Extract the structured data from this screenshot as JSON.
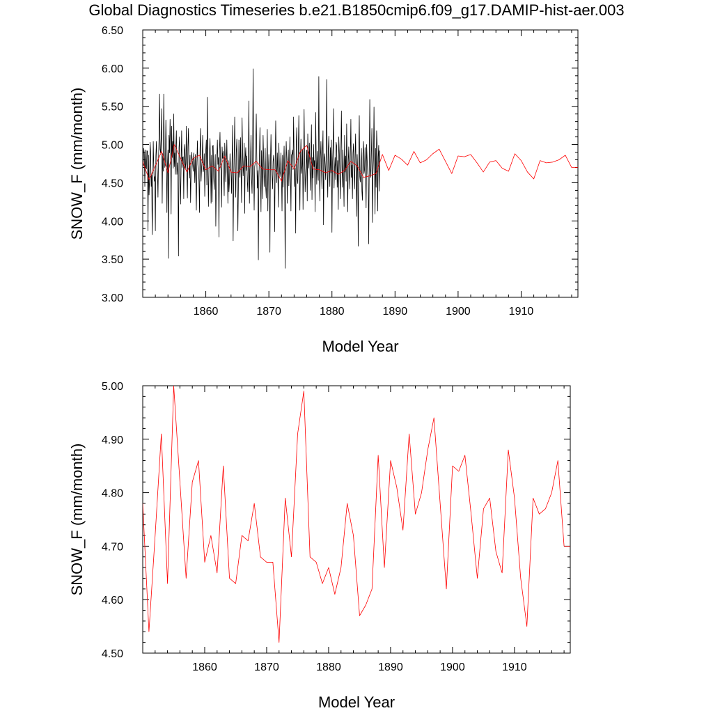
{
  "title": "Global Diagnostics Timeseries b.e21.B1850cmip6.f09_g17.DAMIP-hist-aer.003",
  "colors": {
    "monthly": "#000000",
    "annual": "#ff0000",
    "axes": "#000000",
    "background": "#ffffff"
  },
  "chart_data": [
    {
      "type": "line",
      "xlabel": "Model Year",
      "ylabel": "SNOW_F (mm/month)",
      "xlim": [
        1850,
        1919
      ],
      "ylim": [
        3.0,
        6.5
      ],
      "xticks": [
        1860,
        1870,
        1880,
        1890,
        1900,
        1910
      ],
      "xtick_labels": [
        "1860",
        "1870",
        "1880",
        "1890",
        "1900",
        "1910"
      ],
      "yticks": [
        3.0,
        3.5,
        4.0,
        4.5,
        5.0,
        5.5,
        6.0,
        6.5
      ],
      "ytick_labels": [
        "3.00",
        "3.50",
        "4.00",
        "4.50",
        "5.00",
        "5.50",
        "6.00",
        "6.50"
      ],
      "grid": false,
      "series": [
        {
          "id": "monthly",
          "color": "#000000",
          "x_start": 1850.0,
          "x_step": 0.0833333,
          "values": [
            4.79,
            4.72,
            4.95,
            4.88,
            4.45,
            4.93,
            4.7,
            4.68,
            4.92,
            4.91,
            3.87,
            4.86,
            4.34,
            4.52,
            5.03,
            4.89,
            4.45,
            4.6,
            3.82,
            4.34,
            5.04,
            4.72,
            4.52,
            4.58,
            3.87,
            4.85,
            5.04,
            4.73,
            4.63,
            4.31,
            4.79,
            5.08,
            5.66,
            4.94,
            4.89,
            5.08,
            5.47,
            4.23,
            4.88,
            4.65,
            5.66,
            4.97,
            4.7,
            4.75,
            5.32,
            4.92,
            4.11,
            4.74,
            4.93,
            3.51,
            5.12,
            4.89,
            5.33,
            4.98,
            4.09,
            5.24,
            4.83,
            5.04,
            4.69,
            5.4,
            4.71,
            4.89,
            4.61,
            4.98,
            5.18,
            4.61,
            4.76,
            4.56,
            3.54,
            4.96,
            5.1,
            4.6,
            4.22,
            4.73,
            5.18,
            4.7,
            4.83,
            4.84,
            4.29,
            4.92,
            5.0,
            4.68,
            4.75,
            5.24,
            4.62,
            4.3,
            4.97,
            5.21,
            4.73,
            4.56,
            4.86,
            4.24,
            4.6,
            4.9,
            4.81,
            4.74,
            4.65,
            4.89,
            4.79,
            4.5,
            4.87,
            4.51,
            4.14,
            4.77,
            5.05,
            4.73,
            4.69,
            4.52,
            4.11,
            4.94,
            5.21,
            4.52,
            4.7,
            4.79,
            5.12,
            4.64,
            4.68,
            4.88,
            4.32,
            4.69,
            4.93,
            5.06,
            4.47,
            5.62,
            4.71,
            4.19,
            4.66,
            4.88,
            5.08,
            4.73,
            4.23,
            4.86,
            4.25,
            4.98,
            4.99,
            4.57,
            4.41,
            4.71,
            4.87,
            3.93,
            4.48,
            4.81,
            5.06,
            4.74,
            4.83,
            3.79,
            4.92,
            5.16,
            4.74,
            4.65,
            4.18,
            4.97,
            4.82,
            4.91,
            4.63,
            4.33,
            5.02,
            4.85,
            4.51,
            4.71,
            5.06,
            4.68,
            4.23,
            4.79,
            4.38,
            4.52,
            4.88,
            4.69,
            4.63,
            4.36,
            4.81,
            5.25,
            3.74,
            4.51,
            4.87,
            5.36,
            4.67,
            4.31,
            4.9,
            5.07,
            4.53,
            3.87,
            4.44,
            5.06,
            4.64,
            4.57,
            5.09,
            4.66,
            4.24,
            5.35,
            4.91,
            4.59,
            4.71,
            5.02,
            4.1,
            4.82,
            4.96,
            4.66,
            4.85,
            4.51,
            4.38,
            4.86,
            5.57,
            4.23,
            4.67,
            4.8,
            5.12,
            4.55,
            4.36,
            4.84,
            5.99,
            4.71,
            4.14,
            4.71,
            4.76,
            4.93,
            5.4,
            4.82,
            4.43,
            4.66,
            3.49,
            4.56,
            4.84,
            5.22,
            4.59,
            4.12,
            4.92,
            4.69,
            4.29,
            5.12,
            4.83,
            4.45,
            4.63,
            4.95,
            4.44,
            4.3,
            4.77,
            5.2,
            4.13,
            4.64,
            4.87,
            4.67,
            3.59,
            4.78,
            5.13,
            4.68,
            4.59,
            4.42,
            4.78,
            4.86,
            4.65,
            3.86,
            4.74,
            5.31,
            4.78,
            4.5,
            4.89,
            4.66,
            4.18,
            5.02,
            4.71,
            4.58,
            4.65,
            4.89,
            4.59,
            4.13,
            4.86,
            4.44,
            4.72,
            4.98,
            4.55,
            3.38,
            4.73,
            5.04,
            4.79,
            4.23,
            4.77,
            4.93,
            4.46,
            4.69,
            5.1,
            4.64,
            4.13,
            4.86,
            4.88,
            4.93,
            4.67,
            5.36,
            4.82,
            4.45,
            4.69,
            3.84,
            5.0,
            5.22,
            4.55,
            4.49,
            4.91,
            5.38,
            4.59,
            4.14,
            4.8,
            5.07,
            4.62,
            4.71,
            4.93,
            4.15,
            4.73,
            5.46,
            4.82,
            4.38,
            4.62,
            4.76,
            4.93,
            4.26,
            5.14,
            4.81,
            4.69,
            5.02,
            4.74,
            4.4,
            4.89,
            5.26,
            4.28,
            4.83,
            4.56,
            5.0,
            4.71,
            4.79,
            4.12,
            5.42,
            4.86,
            4.48,
            4.91,
            4.67,
            4.53,
            5.89,
            4.7,
            4.26,
            4.82,
            5.04,
            4.69,
            4.42,
            4.91,
            5.18,
            3.95,
            4.8,
            4.88,
            4.73,
            4.54,
            4.87,
            5.85,
            4.65,
            4.31,
            4.91,
            5.11,
            4.72,
            4.45,
            4.96,
            4.63,
            5.06,
            3.85,
            4.74,
            4.95,
            5.47,
            4.43,
            4.69,
            4.83,
            4.54,
            5.03,
            4.98,
            4.44,
            4.79,
            4.15,
            5.1,
            4.89,
            4.63,
            4.29,
            4.91,
            5.44,
            4.71,
            4.44,
            4.93,
            4.57,
            4.19,
            5.12,
            4.64,
            4.85,
            4.52,
            5.27,
            4.71,
            4.12,
            4.77,
            4.97,
            4.66,
            4.42,
            4.86,
            5.33,
            4.57,
            4.73,
            4.29,
            4.89,
            5.01,
            4.63,
            4.42,
            4.85,
            5.14,
            4.59,
            4.06,
            4.87,
            4.64,
            3.67,
            4.81,
            5.38,
            4.58,
            4.51,
            4.79,
            4.95,
            4.39,
            4.27,
            4.88,
            5.04,
            4.62,
            4.67,
            4.96,
            4.59,
            4.17,
            5.0,
            4.8,
            4.62,
            4.58,
            3.7,
            4.77,
            5.59,
            4.68,
            4.57,
            4.9,
            5.21,
            3.98,
            4.62,
            4.81,
            5.49,
            4.72,
            4.09,
            4.95,
            4.44,
            5.18,
            4.98,
            4.13,
            4.84,
            4.99,
            4.39,
            4.92
          ]
        },
        {
          "id": "annual",
          "color": "#ff0000",
          "x": [
            1850.0,
            1851.0,
            1852.0,
            1853.0,
            1854.0,
            1855.0,
            1856.0,
            1857.0,
            1858.0,
            1859.0,
            1860.0,
            1861.0,
            1862.0,
            1863.0,
            1864.0,
            1865.0,
            1866.0,
            1867.0,
            1868.0,
            1869.0,
            1870.0,
            1871.0,
            1872.0,
            1873.0,
            1874.0,
            1875.0,
            1876.0,
            1877.0,
            1878.0,
            1879.0,
            1880.0,
            1881.0,
            1882.0,
            1883.0,
            1884.0,
            1885.0,
            1886.0,
            1887.0,
            1888.0,
            1889.0,
            1890.0,
            1891.0,
            1892.0,
            1893.0,
            1894.0,
            1895.0,
            1896.0,
            1897.0,
            1898.0,
            1899.0,
            1900.0,
            1901.0,
            1902.0,
            1903.0,
            1904.0,
            1905.0,
            1906.0,
            1907.0,
            1908.0,
            1909.0,
            1910.0,
            1911.0,
            1912.0,
            1913.0,
            1914.0,
            1915.0,
            1916.0,
            1917.0,
            1918.0,
            1919.0
          ],
          "values": [
            4.78,
            4.54,
            4.72,
            4.91,
            4.63,
            5.0,
            4.82,
            4.64,
            4.82,
            4.86,
            4.67,
            4.72,
            4.65,
            4.85,
            4.64,
            4.63,
            4.72,
            4.71,
            4.78,
            4.68,
            4.67,
            4.67,
            4.52,
            4.79,
            4.68,
            4.91,
            4.99,
            4.68,
            4.67,
            4.63,
            4.66,
            4.61,
            4.66,
            4.78,
            4.72,
            4.57,
            4.59,
            4.62,
            4.87,
            4.66,
            4.86,
            4.81,
            4.73,
            4.91,
            4.76,
            4.8,
            4.88,
            4.94,
            4.78,
            4.62,
            4.85,
            4.84,
            4.87,
            4.76,
            4.64,
            4.77,
            4.79,
            4.69,
            4.65,
            4.88,
            4.79,
            4.64,
            4.55,
            4.79,
            4.76,
            4.77,
            4.8,
            4.86,
            4.7,
            4.7
          ]
        }
      ]
    },
    {
      "type": "line",
      "xlabel": "Model Year",
      "ylabel": "SNOW_F (mm/month)",
      "xlim": [
        1850,
        1919
      ],
      "ylim": [
        4.5,
        5.0
      ],
      "xticks": [
        1860,
        1870,
        1880,
        1890,
        1900,
        1910
      ],
      "xtick_labels": [
        "1860",
        "1870",
        "1880",
        "1890",
        "1900",
        "1910"
      ],
      "yticks": [
        4.5,
        4.6,
        4.7,
        4.8,
        4.9,
        5.0
      ],
      "ytick_labels": [
        "4.50",
        "4.60",
        "4.70",
        "4.80",
        "4.90",
        "5.00"
      ],
      "grid": false,
      "series": [
        {
          "id": "annual",
          "color": "#ff0000",
          "x": [
            1850.0,
            1851.0,
            1852.0,
            1853.0,
            1854.0,
            1855.0,
            1856.0,
            1857.0,
            1858.0,
            1859.0,
            1860.0,
            1861.0,
            1862.0,
            1863.0,
            1864.0,
            1865.0,
            1866.0,
            1867.0,
            1868.0,
            1869.0,
            1870.0,
            1871.0,
            1872.0,
            1873.0,
            1874.0,
            1875.0,
            1876.0,
            1877.0,
            1878.0,
            1879.0,
            1880.0,
            1881.0,
            1882.0,
            1883.0,
            1884.0,
            1885.0,
            1886.0,
            1887.0,
            1888.0,
            1889.0,
            1890.0,
            1891.0,
            1892.0,
            1893.0,
            1894.0,
            1895.0,
            1896.0,
            1897.0,
            1898.0,
            1899.0,
            1900.0,
            1901.0,
            1902.0,
            1903.0,
            1904.0,
            1905.0,
            1906.0,
            1907.0,
            1908.0,
            1909.0,
            1910.0,
            1911.0,
            1912.0,
            1913.0,
            1914.0,
            1915.0,
            1916.0,
            1917.0,
            1918.0,
            1919.0
          ],
          "values": [
            4.78,
            4.54,
            4.72,
            4.91,
            4.63,
            5.0,
            4.82,
            4.64,
            4.82,
            4.86,
            4.67,
            4.72,
            4.65,
            4.85,
            4.64,
            4.63,
            4.72,
            4.71,
            4.78,
            4.68,
            4.67,
            4.67,
            4.52,
            4.79,
            4.68,
            4.91,
            4.99,
            4.68,
            4.67,
            4.63,
            4.66,
            4.61,
            4.66,
            4.78,
            4.72,
            4.57,
            4.59,
            4.62,
            4.87,
            4.66,
            4.86,
            4.81,
            4.73,
            4.91,
            4.76,
            4.8,
            4.88,
            4.94,
            4.78,
            4.62,
            4.85,
            4.84,
            4.87,
            4.76,
            4.64,
            4.77,
            4.79,
            4.69,
            4.65,
            4.88,
            4.79,
            4.64,
            4.55,
            4.79,
            4.76,
            4.77,
            4.8,
            4.86,
            4.7,
            4.7
          ]
        }
      ]
    }
  ]
}
